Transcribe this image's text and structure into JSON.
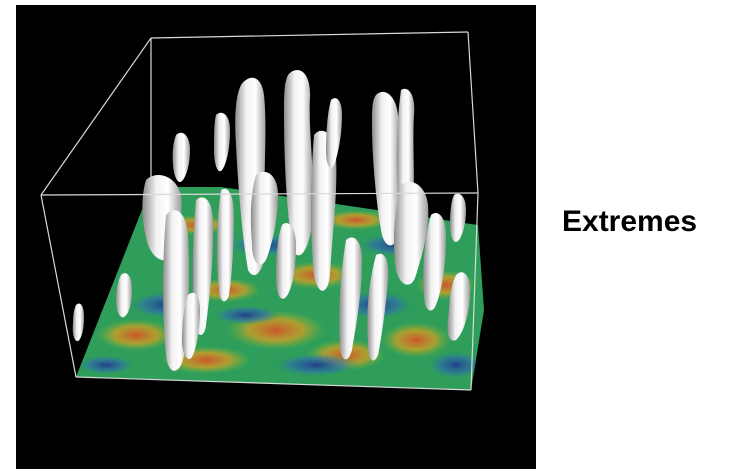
{
  "caption": "Extremes",
  "colors": {
    "background": "#ffffff",
    "panel": "#000000",
    "box_edges": "#d9d9d9",
    "isosurface": "#e6e6e6",
    "field_palette": [
      "#1f3a8a",
      "#2f6fb0",
      "#2e9e5a",
      "#7db83a",
      "#e0a020",
      "#d2522a",
      "#c0392b"
    ]
  }
}
